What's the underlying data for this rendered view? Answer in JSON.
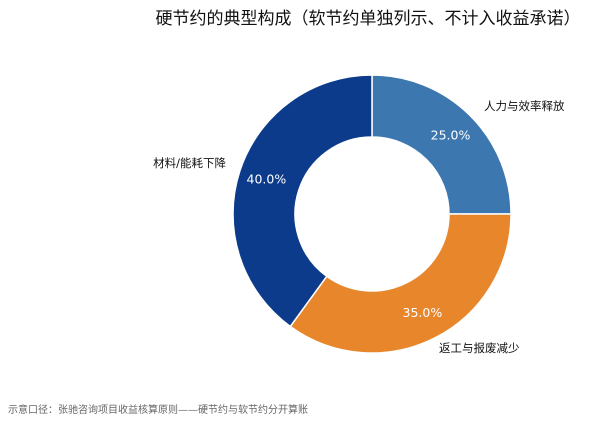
{
  "chart_data": {
    "type": "pie",
    "donut": true,
    "title": "硬节约的典型构成（软节约单独列示、不计入收益承诺）",
    "slices": [
      {
        "label": "人力与效率释放",
        "value": 25.0,
        "pct_label": "25.0%",
        "color": "#3d77b0"
      },
      {
        "label": "返工与报废减少",
        "value": 35.0,
        "pct_label": "35.0%",
        "color": "#e8862c"
      },
      {
        "label": "材料/能耗下降",
        "value": 40.0,
        "pct_label": "40.0%",
        "color": "#0c3b8c"
      }
    ],
    "start_angle": "12 o'clock",
    "direction": "clockwise",
    "legend": "none"
  },
  "footnote": "示意口径：张驰咨询项目收益核算原则——硬节约与软节约分开算账"
}
